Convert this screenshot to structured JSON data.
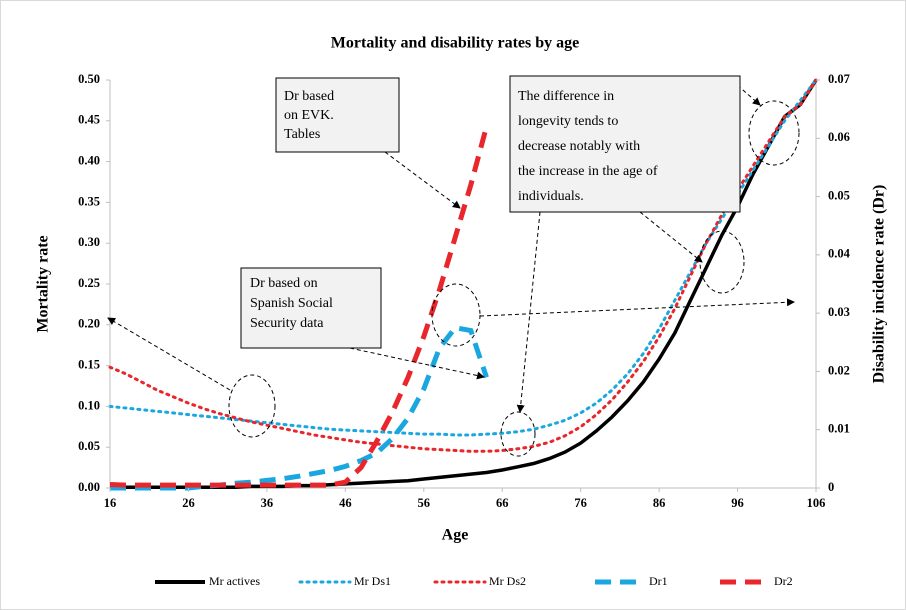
{
  "chart_data": {
    "type": "line",
    "title": "Mortality and disability rates by age",
    "xlabel": "Age",
    "ylabel": "Mortality rate",
    "y2label": "Disability incidence rate (Dr)",
    "x": [
      16,
      18,
      20,
      22,
      24,
      26,
      28,
      30,
      32,
      34,
      36,
      38,
      40,
      42,
      44,
      46,
      48,
      50,
      52,
      54,
      56,
      58,
      60,
      62,
      64,
      66,
      68,
      70,
      72,
      74,
      76,
      78,
      80,
      82,
      84,
      86,
      88,
      90,
      92,
      94,
      96,
      98,
      100,
      102,
      104,
      106
    ],
    "xlim": [
      16,
      106
    ],
    "xticks": [
      16,
      26,
      36,
      46,
      56,
      66,
      76,
      86,
      96,
      106
    ],
    "ylim": [
      0,
      0.5
    ],
    "yticks": [
      {
        "value": 0,
        "label": "0.00"
      },
      {
        "value": 0.05,
        "label": "0.05"
      },
      {
        "value": 0.1,
        "label": "0.10"
      },
      {
        "value": 0.15,
        "label": "0.15"
      },
      {
        "value": 0.2,
        "label": "0.20"
      },
      {
        "value": 0.25,
        "label": "0.25"
      },
      {
        "value": 0.3,
        "label": "0.30"
      },
      {
        "value": 0.35,
        "label": "0.35"
      },
      {
        "value": 0.4,
        "label": "0.40"
      },
      {
        "value": 0.45,
        "label": "0.45"
      },
      {
        "value": 0.5,
        "label": "0.50"
      }
    ],
    "y2lim": [
      0,
      0.07
    ],
    "y2ticks": [
      0,
      0.01,
      0.02,
      0.03,
      0.04,
      0.05,
      0.06,
      0.07
    ],
    "series": [
      {
        "name": "Mr actives",
        "color": "#000000",
        "dash": "solid",
        "values": [
          0.001,
          0.001,
          0.001,
          0.001,
          0.001,
          0.001,
          0.001,
          0.001,
          0.001,
          0.002,
          0.002,
          0.002,
          0.003,
          0.003,
          0.004,
          0.005,
          0.006,
          0.007,
          0.008,
          0.009,
          0.011,
          0.013,
          0.015,
          0.017,
          0.019,
          0.022,
          0.026,
          0.03,
          0.036,
          0.044,
          0.055,
          0.07,
          0.087,
          0.107,
          0.13,
          0.158,
          0.19,
          0.23,
          0.27,
          0.31,
          0.345,
          0.385,
          0.42,
          0.455,
          0.47,
          0.5
        ]
      },
      {
        "name": "Mr Ds1",
        "color": "#1aa7e0",
        "dash": "dot",
        "values": [
          0.1,
          0.098,
          0.096,
          0.094,
          0.092,
          0.09,
          0.088,
          0.086,
          0.084,
          0.082,
          0.08,
          0.078,
          0.076,
          0.074,
          0.072,
          0.071,
          0.07,
          0.069,
          0.068,
          0.067,
          0.066,
          0.066,
          0.065,
          0.065,
          0.066,
          0.067,
          0.069,
          0.072,
          0.077,
          0.083,
          0.092,
          0.104,
          0.12,
          0.14,
          0.165,
          0.195,
          0.23,
          0.265,
          0.3,
          0.33,
          0.36,
          0.39,
          0.42,
          0.45,
          0.475,
          0.5
        ]
      },
      {
        "name": "Mr Ds2",
        "color": "#e8262b",
        "dash": "dot",
        "values": [
          0.148,
          0.14,
          0.13,
          0.12,
          0.112,
          0.104,
          0.097,
          0.091,
          0.086,
          0.081,
          0.077,
          0.073,
          0.069,
          0.065,
          0.062,
          0.059,
          0.056,
          0.054,
          0.052,
          0.05,
          0.048,
          0.047,
          0.046,
          0.045,
          0.045,
          0.046,
          0.048,
          0.051,
          0.056,
          0.064,
          0.075,
          0.09,
          0.108,
          0.13,
          0.155,
          0.185,
          0.22,
          0.26,
          0.3,
          0.335,
          0.365,
          0.395,
          0.425,
          0.455,
          0.47,
          0.5
        ]
      },
      {
        "name": "Dr1",
        "color": "#1aa7e0",
        "dash": "dash",
        "axis": "y2",
        "values": [
          0,
          0,
          0,
          0,
          0,
          0,
          0.0003,
          0.0005,
          0.0008,
          0.001,
          0.0013,
          0.0016,
          0.002,
          0.0025,
          0.003,
          0.0037,
          0.0047,
          0.006,
          0.0085,
          0.012,
          0.017,
          0.024,
          0.0275,
          0.027,
          0.019,
          null,
          null,
          null,
          null,
          null,
          null,
          null,
          null,
          null,
          null,
          null,
          null,
          null,
          null,
          null,
          null,
          null,
          null,
          null,
          null,
          null
        ]
      },
      {
        "name": "Dr2",
        "color": "#e8262b",
        "dash": "dash",
        "axis": "y2",
        "values": [
          0.0006,
          0.0005,
          0.0005,
          0.0005,
          0.0005,
          0.0005,
          0.0005,
          0.0005,
          0.0005,
          0.0005,
          0.0005,
          0.0005,
          0.0005,
          0.0005,
          0.0005,
          0.001,
          0.0035,
          0.008,
          0.013,
          0.019,
          0.026,
          0.034,
          0.043,
          0.052,
          0.062,
          null,
          null,
          null,
          null,
          null,
          null,
          null,
          null,
          null,
          null,
          null,
          null,
          null,
          null,
          null,
          null,
          null,
          null,
          null,
          null,
          null
        ]
      }
    ],
    "annotations": [
      [
        "Dr  based",
        "on EVK.",
        "Tables"
      ],
      [
        "Dr based on",
        "Spanish Social",
        "Security data"
      ],
      [
        "The difference in",
        "longevity tends to",
        "decrease notably with",
        "the increase in the age of",
        "individuals."
      ]
    ]
  }
}
